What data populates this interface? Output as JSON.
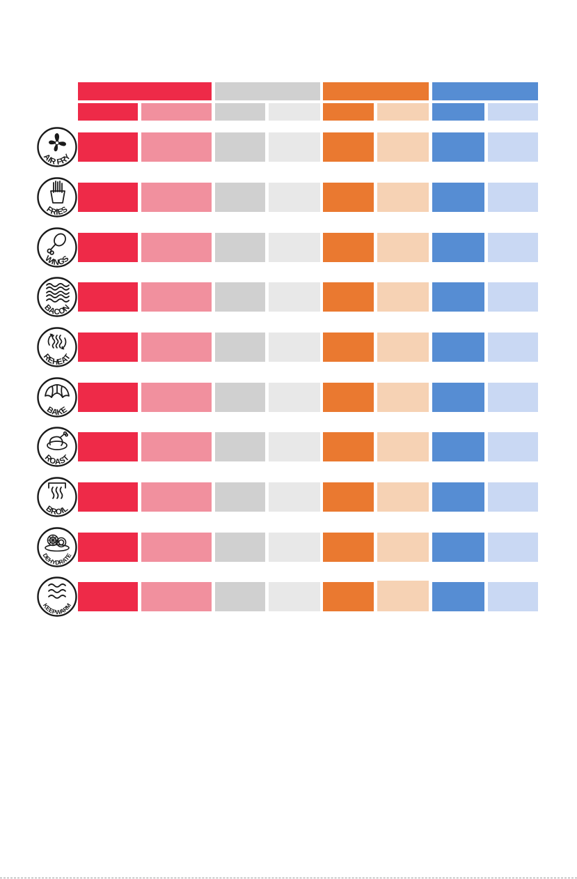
{
  "colors": {
    "group_1": {
      "dark": "#ee2a48",
      "light": "#f1909e"
    },
    "group_2": {
      "dark": "#d0d0d0",
      "light": "#e8e8e8"
    },
    "group_3": {
      "dark": "#ea7930",
      "light": "#f6d2b4"
    },
    "group_4": {
      "dark": "#568dd3",
      "light": "#c9d8f3"
    }
  },
  "modes": [
    {
      "label": "AIR FRY",
      "icon": "fan-icon"
    },
    {
      "label": "FRIES",
      "icon": "fries-icon"
    },
    {
      "label": "WINGS",
      "icon": "drumstick-icon"
    },
    {
      "label": "BACON",
      "icon": "bacon-icon"
    },
    {
      "label": "REHEAT",
      "icon": "reheat-icon"
    },
    {
      "label": "BAKE",
      "icon": "croissant-icon"
    },
    {
      "label": "ROAST",
      "icon": "roast-chicken-icon"
    },
    {
      "label": "BROIL",
      "icon": "broil-icon"
    },
    {
      "label": "DEHYDRATE",
      "icon": "fruit-slices-icon"
    },
    {
      "label": "KEEPWARM",
      "icon": "warm-waves-icon"
    }
  ]
}
